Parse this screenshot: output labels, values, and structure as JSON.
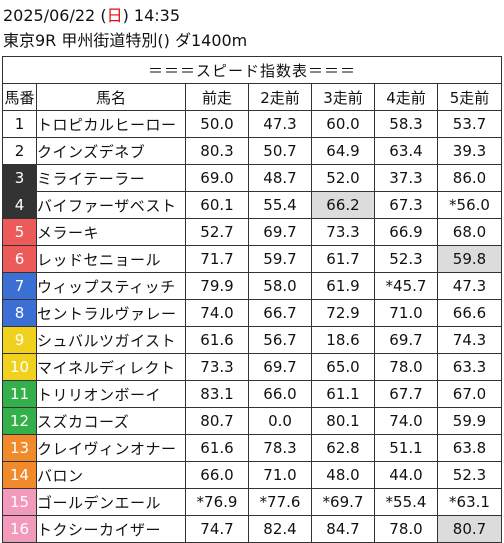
{
  "header": {
    "date": "2025/06/22",
    "weekday_open": "(",
    "weekday": "日",
    "weekday_close": ")",
    "time": "14:35",
    "race": "東京9R 甲州街道特別() ダ1400m"
  },
  "banner": "＝＝＝スピード指数表＝＝＝",
  "columns": [
    "馬番",
    "馬名",
    "前走",
    "2走前",
    "3走前",
    "4走前",
    "5走前"
  ],
  "horses": [
    {
      "no": "1",
      "name": "トロピカルヒーロー",
      "bg": "#ffffff",
      "fg": "#111111",
      "vals": [
        "50.0",
        "47.3",
        "60.0",
        "58.3",
        "53.7"
      ],
      "hl": []
    },
    {
      "no": "2",
      "name": "クインズデネブ",
      "bg": "#ffffff",
      "fg": "#111111",
      "vals": [
        "80.3",
        "50.7",
        "64.9",
        "63.4",
        "39.3"
      ],
      "hl": []
    },
    {
      "no": "3",
      "name": "ミライテーラー",
      "bg": "#333333",
      "fg": "#ffffff",
      "vals": [
        "69.0",
        "48.7",
        "52.0",
        "37.3",
        "86.0"
      ],
      "hl": []
    },
    {
      "no": "4",
      "name": "バイファーザベスト",
      "bg": "#333333",
      "fg": "#ffffff",
      "vals": [
        "60.1",
        "55.4",
        "66.2",
        "67.3",
        "*56.0"
      ],
      "hl": [
        2
      ]
    },
    {
      "no": "5",
      "name": "メラーキ",
      "bg": "#ec5a5a",
      "fg": "#ffffff",
      "vals": [
        "52.7",
        "69.7",
        "73.3",
        "66.9",
        "68.0"
      ],
      "hl": []
    },
    {
      "no": "6",
      "name": "レッドセニョール",
      "bg": "#ec5a5a",
      "fg": "#ffffff",
      "vals": [
        "71.7",
        "59.7",
        "61.7",
        "52.3",
        "59.8"
      ],
      "hl": [
        4
      ]
    },
    {
      "no": "7",
      "name": "ウィップスティッチ",
      "bg": "#3b6fd4",
      "fg": "#ffffff",
      "vals": [
        "79.9",
        "58.0",
        "61.9",
        "*45.7",
        "47.3"
      ],
      "hl": []
    },
    {
      "no": "8",
      "name": "セントラルヴァレー",
      "bg": "#3b6fd4",
      "fg": "#ffffff",
      "vals": [
        "74.0",
        "66.7",
        "72.9",
        "71.0",
        "66.6"
      ],
      "hl": []
    },
    {
      "no": "9",
      "name": "シュバルツガイスト",
      "bg": "#f0d21e",
      "fg": "#ffffff",
      "vals": [
        "61.6",
        "56.7",
        "18.6",
        "69.7",
        "74.3"
      ],
      "hl": []
    },
    {
      "no": "10",
      "name": "マイネルディレクト",
      "bg": "#f0d21e",
      "fg": "#ffffff",
      "vals": [
        "73.3",
        "69.7",
        "65.0",
        "78.0",
        "63.3"
      ],
      "hl": []
    },
    {
      "no": "11",
      "name": "トリリオンボーイ",
      "bg": "#34b04a",
      "fg": "#ffffff",
      "vals": [
        "83.1",
        "66.0",
        "61.1",
        "67.7",
        "67.0"
      ],
      "hl": []
    },
    {
      "no": "12",
      "name": "スズカコーズ",
      "bg": "#34b04a",
      "fg": "#ffffff",
      "vals": [
        "80.7",
        "0.0",
        "80.1",
        "74.0",
        "59.9"
      ],
      "hl": []
    },
    {
      "no": "13",
      "name": "クレイヴィンオナー",
      "bg": "#f08a2a",
      "fg": "#ffffff",
      "vals": [
        "61.6",
        "78.3",
        "62.8",
        "51.1",
        "63.8"
      ],
      "hl": []
    },
    {
      "no": "14",
      "name": "バロン",
      "bg": "#f08a2a",
      "fg": "#ffffff",
      "vals": [
        "66.0",
        "71.0",
        "48.0",
        "44.0",
        "52.3"
      ],
      "hl": []
    },
    {
      "no": "15",
      "name": "ゴールデンエール",
      "bg": "#f29ab9",
      "fg": "#ffffff",
      "vals": [
        "*76.9",
        "*77.6",
        "*69.7",
        "*55.4",
        "*63.1"
      ],
      "hl": []
    },
    {
      "no": "16",
      "name": "トクシーカイザー",
      "bg": "#f29ab9",
      "fg": "#ffffff",
      "vals": [
        "74.7",
        "82.4",
        "84.7",
        "78.0",
        "80.7"
      ],
      "hl": [
        4
      ]
    }
  ]
}
